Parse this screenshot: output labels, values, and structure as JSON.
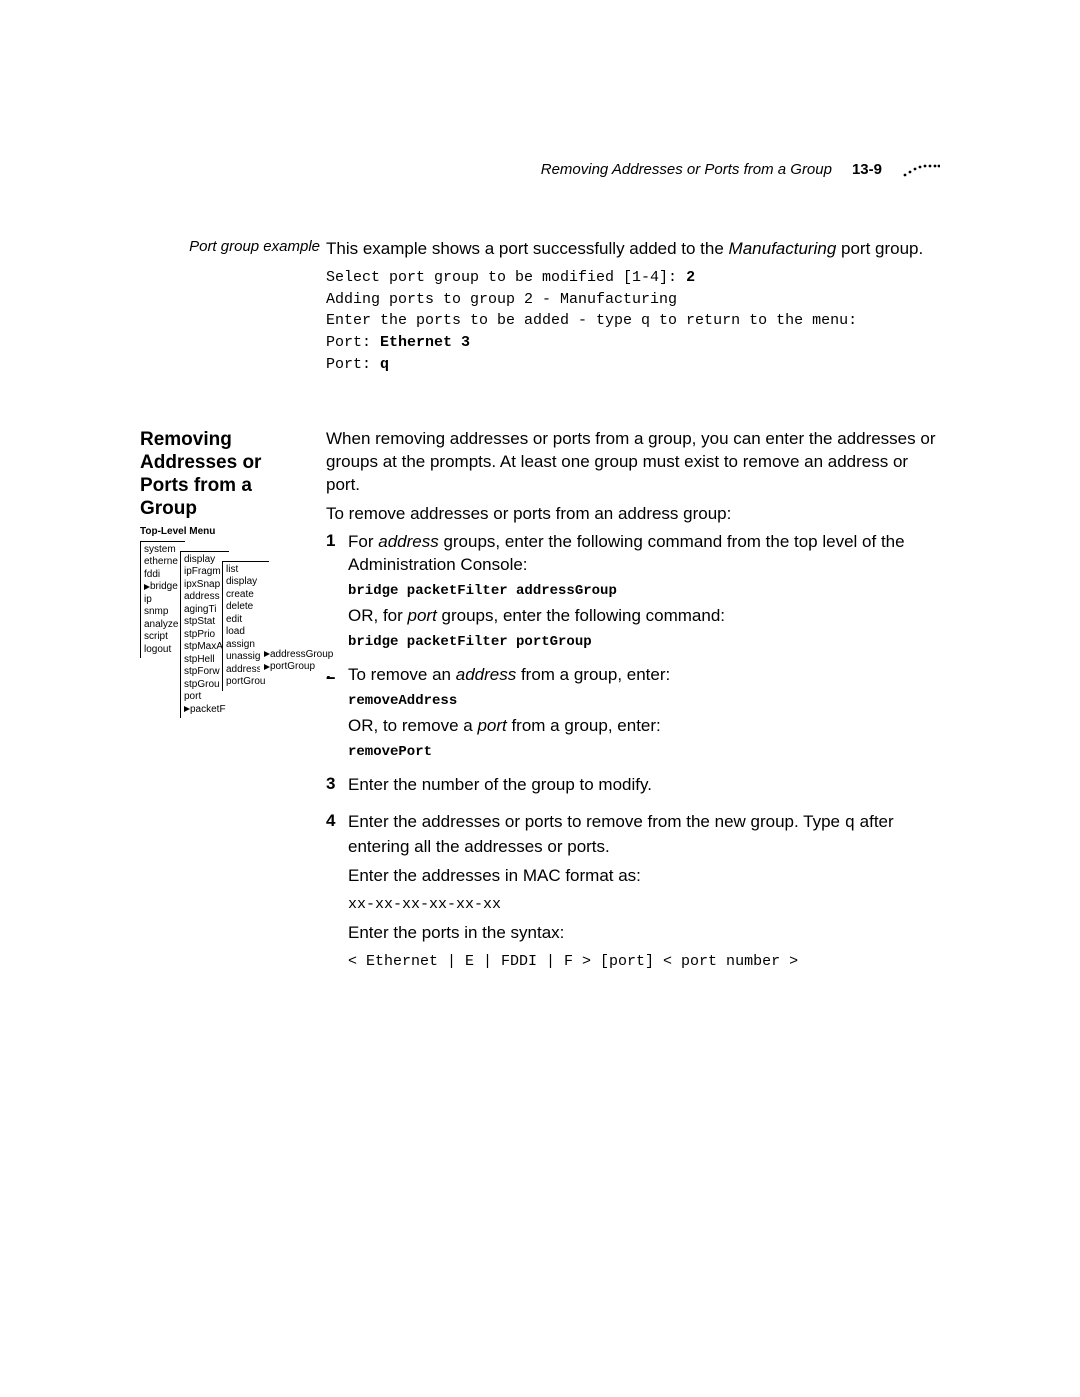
{
  "header": {
    "running_title": "Removing Addresses or Ports from a Group",
    "page_number": "13-9"
  },
  "example": {
    "side_label": "Port group example",
    "intro_pre": "This example shows a port successfully added to the ",
    "intro_em": "Manufacturing",
    "intro_post": " port group.",
    "line1": "Select port group to be modified [1-4]: ",
    "line1_bold": "2",
    "line2": "Adding ports to group 2 - Manufacturing",
    "line3": "Enter the ports to be added - type q to return to the menu:",
    "line4_pre": "Port: ",
    "line4_bold": "Ethernet 3",
    "line5_pre": "Port: ",
    "line5_bold": "q"
  },
  "section": {
    "heading": "Removing Addresses or Ports from a Group",
    "p1": "When removing addresses or ports from a group, you can enter the addresses or groups at the prompts. At least one group must exist to remove an address or port.",
    "p2": "To remove addresses or ports from an address group:",
    "step1_num": "1",
    "step1_pre": "For ",
    "step1_em": "address",
    "step1_post": " groups, enter the following command from the top level of the Administration Console:",
    "step1_cmd1": "bridge packetFilter addressGroup",
    "step1_or_pre": "OR, for ",
    "step1_or_em": "port",
    "step1_or_post": " groups, enter the following command:",
    "step1_cmd2": "bridge packetFilter portGroup",
    "step2_num": "2",
    "step2_pre": "To remove an ",
    "step2_em": "address",
    "step2_post": " from a group, enter:",
    "step2_cmd1": "removeAddress",
    "step2_or_pre": "OR, to remove a ",
    "step2_or_em": "port",
    "step2_or_post": " from a group, enter:",
    "step2_cmd2": "removePort",
    "step3_num": "3",
    "step3_txt": "Enter the number of the group to modify.",
    "step4_num": "4",
    "step4_pre": "Enter the addresses or ports to remove from the new group. Type ",
    "step4_code": "q",
    "step4_post": " after entering all the addresses or ports.",
    "step4_p2": "Enter the addresses in MAC format as:",
    "step4_mac": "xx-xx-xx-xx-xx-xx",
    "step4_p3": "Enter the ports in the syntax:",
    "step4_syntax": "< Ethernet | E | FDDI | F > [port] < port number >"
  },
  "menu": {
    "title": "Top-Level Menu",
    "col1": [
      "system",
      "ethernet",
      "fddi",
      "bridge",
      "ip",
      "snmp",
      "analyzer",
      "script",
      "logout"
    ],
    "col1_pointer_index": 3,
    "col2": [
      "display",
      "ipFragmentation",
      "ipxSnapTranslation",
      "addressThreshold",
      "agingTime",
      "stpState",
      "stpPriority",
      "stpMaxAge",
      "stpHelloTime",
      "stpForwardDelay",
      "stpGroupAddress",
      "port",
      "packetFilter"
    ],
    "col2_pointer_index": 12,
    "col3": [
      "list",
      "display",
      "create",
      "delete",
      "edit",
      "load",
      "assign",
      "unassign",
      "addressGroup",
      "portGroup"
    ],
    "col4": [
      "addressGroup",
      "portGroup"
    ],
    "col4_pointer_indices": [
      0,
      1
    ]
  }
}
